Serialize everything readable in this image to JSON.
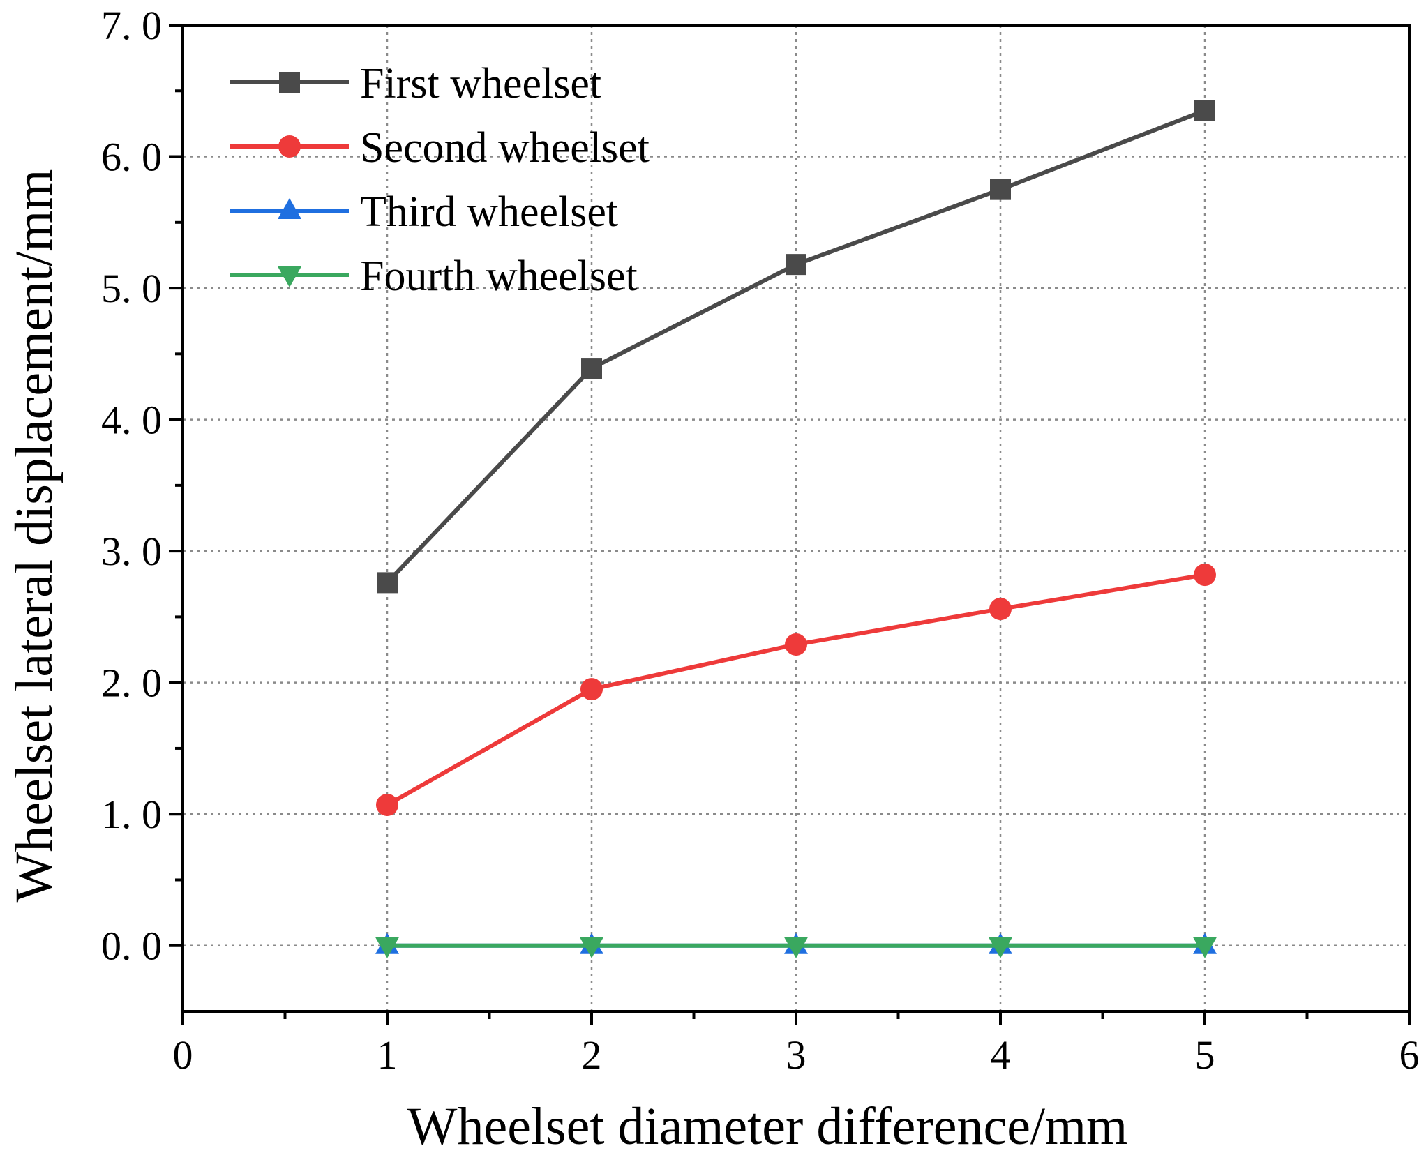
{
  "chart_data": {
    "type": "line",
    "title": "",
    "xlabel": "Wheelset diameter difference/mm",
    "ylabel": "Wheelset lateral displacement/mm",
    "xlim": [
      0,
      6
    ],
    "ylim": [
      -0.5,
      7.0
    ],
    "xticks": [
      0,
      1,
      2,
      3,
      4,
      5,
      6
    ],
    "xtick_labels": [
      "0",
      "1",
      "2",
      "3",
      "4",
      "5",
      "6"
    ],
    "yticks": [
      0,
      1,
      2,
      3,
      4,
      5,
      6,
      7
    ],
    "ytick_labels": [
      "0. 0",
      "1. 0",
      "2. 0",
      "3. 0",
      "4. 0",
      "5. 0",
      "6. 0",
      "7. 0"
    ],
    "grid": true,
    "legend_position": "top-left",
    "x": [
      1,
      2,
      3,
      4,
      5
    ],
    "series": [
      {
        "name": "First wheelset",
        "color": "#4a4a4a",
        "marker": "square",
        "values": [
          2.76,
          4.39,
          5.18,
          5.75,
          6.35
        ]
      },
      {
        "name": "Second wheelset",
        "color": "#ee3a3a",
        "marker": "circle",
        "values": [
          1.07,
          1.95,
          2.29,
          2.56,
          2.82
        ]
      },
      {
        "name": "Third wheelset",
        "color": "#1f6fe0",
        "marker": "triangle-up",
        "values": [
          0,
          0,
          0,
          0,
          0
        ]
      },
      {
        "name": "Fourth wheelset",
        "color": "#3aa85f",
        "marker": "triangle-down",
        "values": [
          0,
          0,
          0,
          0,
          0
        ]
      }
    ]
  }
}
